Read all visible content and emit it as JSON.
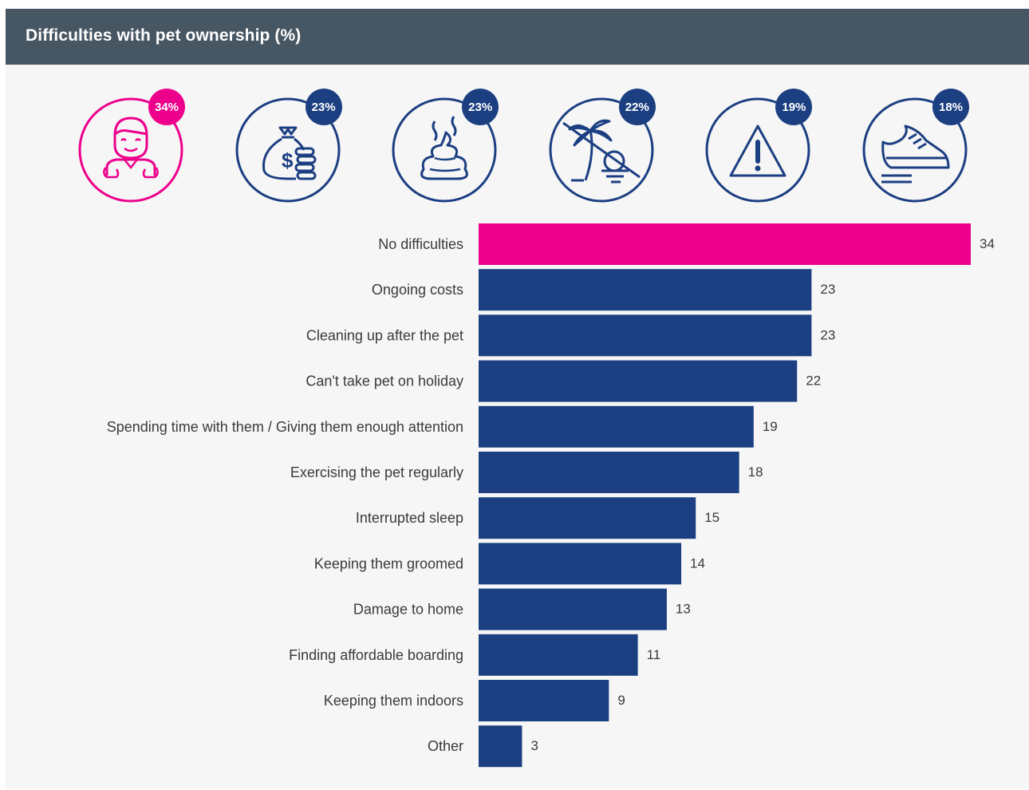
{
  "header": {
    "title": "Difficulties with pet ownership (%)"
  },
  "colors": {
    "highlight": "#ec008c",
    "bar": "#1c3f82",
    "header_bg": "#475663",
    "background": "#f6f6f6",
    "label": "#3a3a3a"
  },
  "icons": [
    {
      "name": "person-icon",
      "badge": "34%",
      "color": "#ec008c"
    },
    {
      "name": "money-bag-icon",
      "badge": "23%",
      "color": "#1c3f82"
    },
    {
      "name": "poop-icon",
      "badge": "23%",
      "color": "#1c3f82"
    },
    {
      "name": "no-holiday-icon",
      "badge": "22%",
      "color": "#1c3f82"
    },
    {
      "name": "warning-icon",
      "badge": "19%",
      "color": "#1c3f82"
    },
    {
      "name": "sneaker-icon",
      "badge": "18%",
      "color": "#1c3f82"
    }
  ],
  "chart_data": {
    "type": "bar",
    "orientation": "horizontal",
    "title": "Difficulties with pet ownership (%)",
    "categories": [
      "No difficulties",
      "Ongoing costs",
      "Cleaning up after the pet",
      "Can't take pet on holiday",
      "Spending time with them / Giving them enough attention",
      "Exercising the pet regularly",
      "Interrupted sleep",
      "Keeping them groomed",
      "Damage to home",
      "Finding affordable boarding",
      "Keeping them indoors",
      "Other"
    ],
    "values": [
      34,
      23,
      23,
      22,
      19,
      18,
      15,
      14,
      13,
      11,
      9,
      3
    ],
    "highlight_index": 0,
    "xlim": [
      0,
      34
    ],
    "grid": false,
    "legend": "none"
  }
}
